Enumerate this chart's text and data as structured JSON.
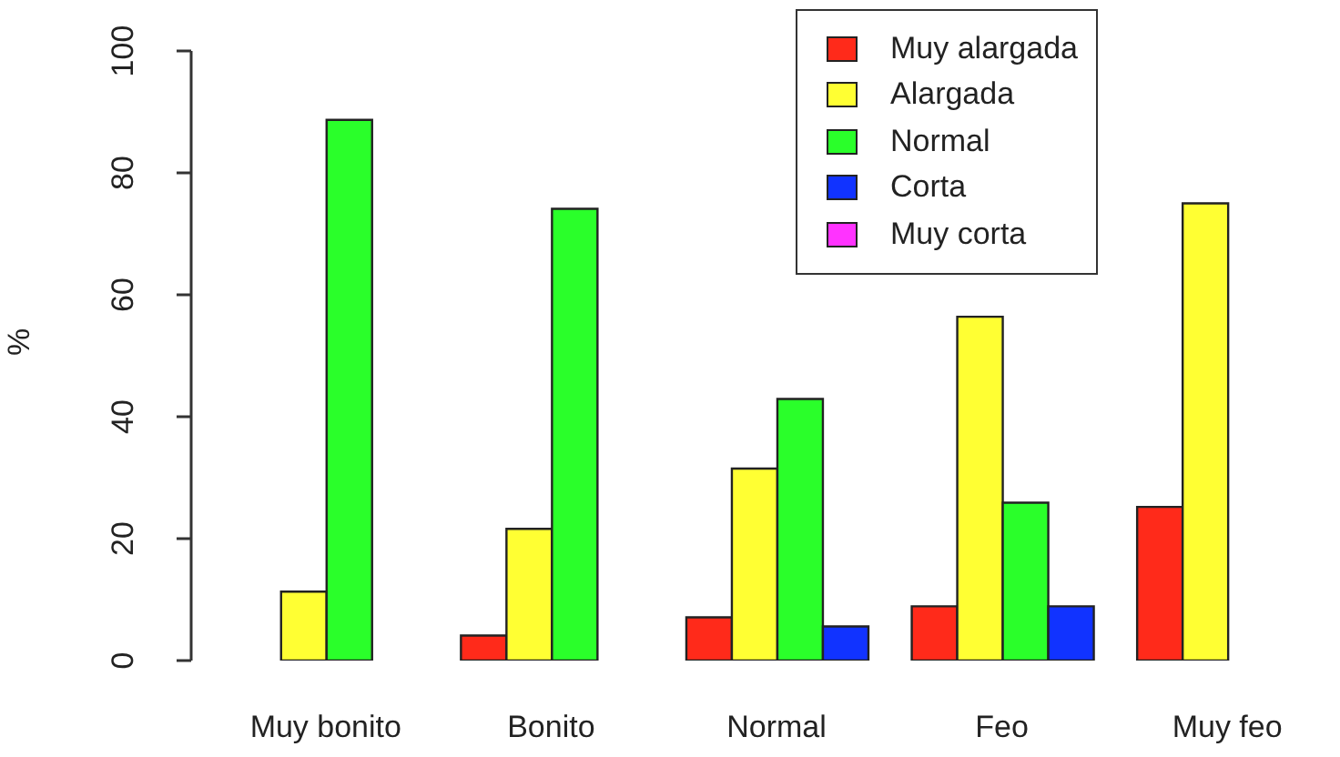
{
  "chart_data": {
    "type": "bar",
    "ylabel": "%",
    "categories": [
      "Muy bonito",
      "Bonito",
      "Normal",
      "Feo",
      "Muy feo"
    ],
    "series": [
      {
        "name": "Muy alargada",
        "color": "#ff2a1a",
        "values": [
          0,
          4.1,
          7.1,
          8.9,
          25.2
        ]
      },
      {
        "name": "Alargada",
        "color": "#ffff33",
        "values": [
          11.3,
          21.6,
          31.5,
          56.4,
          75
        ]
      },
      {
        "name": "Normal",
        "color": "#2aff2a",
        "values": [
          88.7,
          74.1,
          42.9,
          25.9,
          0
        ]
      },
      {
        "name": "Corta",
        "color": "#1133ff",
        "values": [
          0,
          0,
          5.6,
          8.9,
          0
        ]
      },
      {
        "name": "Muy corta",
        "color": "#ff33ff",
        "values": [
          null,
          null,
          null,
          null,
          null
        ]
      }
    ],
    "ylim": [
      0,
      100
    ],
    "yticks": [
      0,
      20,
      40,
      60,
      80,
      100
    ],
    "grid": false,
    "legend": "top right"
  }
}
